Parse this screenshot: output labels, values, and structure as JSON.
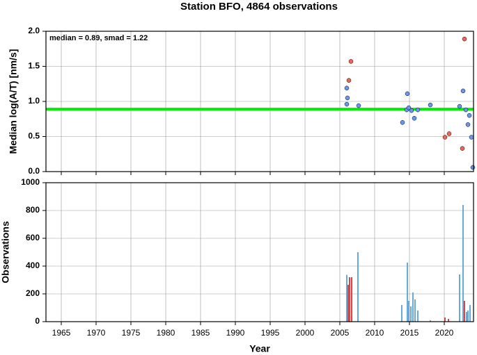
{
  "chart_data": [
    {
      "type": "scatter",
      "title": "Station BFO, 4864 observations",
      "ylabel": "Median log(A/T) [nm/s]",
      "annotation": "median = 0.89, smad = 1.22",
      "reference_line": {
        "value": 0.89,
        "color": "#00ee00"
      },
      "xlim": [
        1962.8,
        2024.2
      ],
      "xticks": [
        1965,
        1970,
        1975,
        1980,
        1985,
        1990,
        1995,
        2000,
        2005,
        2010,
        2015,
        2020
      ],
      "show_xtick_labels": false,
      "ylim": [
        0,
        2
      ],
      "yticks": [
        {
          "value": 0,
          "label": "0.0"
        },
        {
          "value": 0.5,
          "label": "0.5"
        },
        {
          "value": 1,
          "label": "1.0"
        },
        {
          "value": 1.5,
          "label": "1.5"
        },
        {
          "value": 2,
          "label": "2.0"
        }
      ],
      "grid": true,
      "series": [
        {
          "color": "#6699ee",
          "x": [
            2006,
            2006.1,
            2006.0,
            2007.7,
            2014,
            2014.7,
            2014.6,
            2014.9,
            2015.3,
            2015.7,
            2016.2,
            2018,
            2022.2,
            2022.7,
            2023.1,
            2023.4,
            2023.6,
            2023.9,
            2024.1
          ],
          "values": [
            1.19,
            1.05,
            0.96,
            0.94,
            0.7,
            1.11,
            0.88,
            0.91,
            0.87,
            0.76,
            0.88,
            0.95,
            0.93,
            1.15,
            0.88,
            0.67,
            0.8,
            0.49,
            0.06
          ]
        },
        {
          "color": "#ee6655",
          "x": [
            2006.3,
            2006.6,
            2020.1,
            2020.7,
            2022.6,
            2022.9
          ],
          "values": [
            1.3,
            1.57,
            0.49,
            0.54,
            0.33,
            1.89
          ]
        }
      ]
    },
    {
      "type": "bar",
      "ylabel": "Observations",
      "xlabel": "Year",
      "xlim": [
        1962.8,
        2024.2
      ],
      "xticks": [
        1965,
        1970,
        1975,
        1980,
        1985,
        1990,
        1995,
        2000,
        2005,
        2010,
        2015,
        2020
      ],
      "show_xtick_labels": true,
      "ylim": [
        0,
        1000
      ],
      "yticks": [
        0,
        200,
        400,
        600,
        800,
        1000
      ],
      "grid": true,
      "series": [
        {
          "color": "#66aadd",
          "x": [
            2006,
            2007.6,
            2013.9,
            2014.7,
            2014.9,
            2015.2,
            2015.5,
            2015.8,
            2016.2,
            2018,
            2022.2,
            2022.7,
            2023.2,
            2023.4,
            2023.7
          ],
          "values": [
            337,
            500,
            120,
            425,
            150,
            110,
            210,
            160,
            80,
            10,
            340,
            840,
            70,
            80,
            120
          ]
        },
        {
          "color": "#dd4444",
          "x": [
            2006.2,
            2006.4,
            2006.7,
            2020.1,
            2020.6,
            2022.9
          ],
          "values": [
            265,
            320,
            320,
            30,
            20,
            150
          ]
        }
      ]
    }
  ]
}
